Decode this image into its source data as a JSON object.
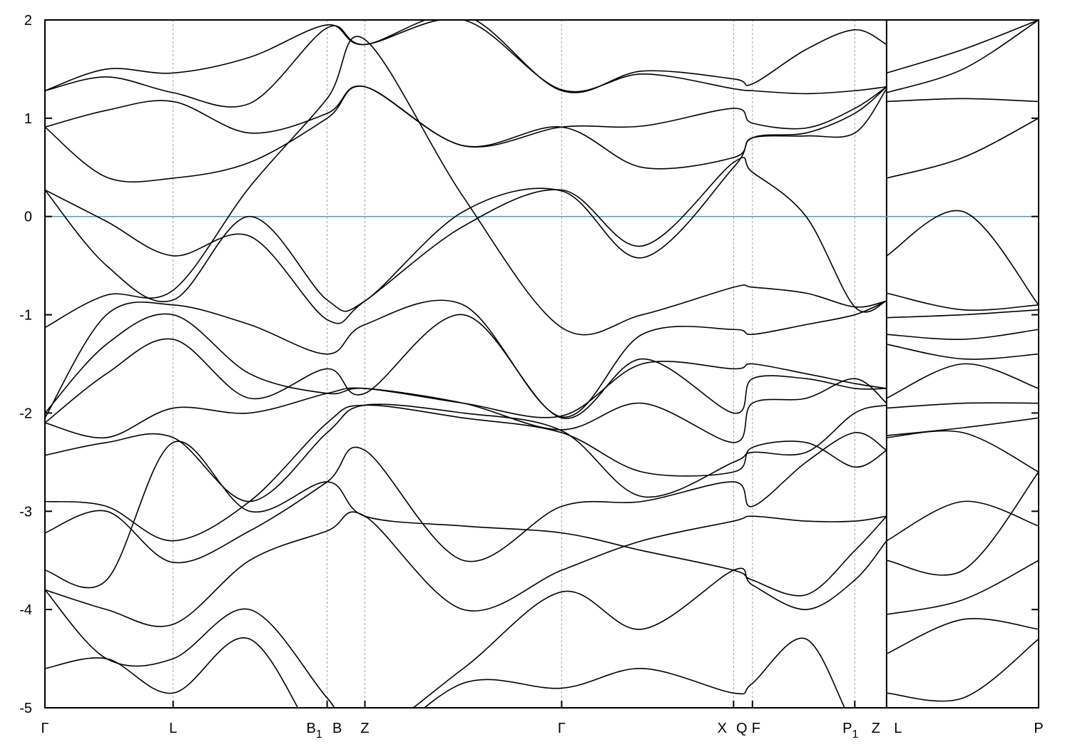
{
  "chart_data": {
    "type": "line",
    "title": "",
    "xlabel": "",
    "ylabel": "",
    "ylim": [
      -5,
      2
    ],
    "yticks": [
      -5,
      -4,
      -3,
      -2,
      -1,
      0,
      1,
      2
    ],
    "ytick_labels": [
      "-5",
      "-4",
      "-3",
      "-2",
      "-1",
      "0",
      "1",
      "2"
    ],
    "grid": "vertical dashed lines at high-symmetry points",
    "fermi_level": 0,
    "colors": {
      "bands": "#000000",
      "fermi_line": "#3fa3dc",
      "gridlines": "#a0a0a0"
    },
    "kpoints": [
      {
        "label": "Γ",
        "sub": "",
        "k": 0.0
      },
      {
        "label": "L",
        "sub": "",
        "k": 0.129
      },
      {
        "label": "B",
        "sub": "1",
        "k": 0.284
      },
      {
        "label": "B",
        "sub": "",
        "k": 0.284
      },
      {
        "label": "Z",
        "sub": "",
        "k": 0.322
      },
      {
        "label": "Γ",
        "sub": "",
        "k": 0.52
      },
      {
        "label": "X",
        "sub": "",
        "k": 0.693
      },
      {
        "label": "Q",
        "sub": "",
        "k": 0.712
      },
      {
        "label": "F",
        "sub": "",
        "k": 0.712
      },
      {
        "label": "P",
        "sub": "1",
        "k": 0.815
      },
      {
        "label": "Z",
        "sub": "",
        "k": 0.847
      },
      {
        "label": "L",
        "sub": "",
        "k": 0.847
      },
      {
        "label": "P",
        "sub": "",
        "k": 1.0
      }
    ],
    "path_break_k": 0.847,
    "segments": [
      {
        "k": [
          0,
          0.062,
          0.129,
          0.206,
          0.284,
          0.322,
          0.421,
          0.52,
          0.601,
          0.693,
          0.712,
          0.766,
          0.815,
          0.847
        ],
        "bands": [
          [
            1.28,
            1.5,
            1.46,
            1.62,
            1.95,
            1.75,
            2.05,
            1.28,
            1.48,
            1.4,
            1.35,
            1.7,
            1.9,
            1.75
          ],
          [
            1.28,
            1.42,
            1.26,
            1.15,
            1.92,
            1.75,
            2.0,
            1.29,
            1.45,
            1.3,
            1.28,
            1.25,
            1.28,
            1.32
          ],
          [
            0.91,
            1.08,
            1.17,
            0.85,
            1.05,
            1.32,
            0.72,
            0.91,
            0.92,
            1.1,
            0.95,
            0.9,
            1.1,
            1.32
          ],
          [
            0.91,
            0.4,
            0.39,
            0.55,
            1.0,
            1.32,
            0.72,
            0.91,
            0.5,
            0.6,
            0.8,
            0.82,
            0.85,
            1.3
          ],
          [
            0.27,
            -0.05,
            -0.4,
            -0.2,
            -1.05,
            -0.86,
            -0.1,
            0.27,
            -0.3,
            0.55,
            0.45,
            0.0,
            -0.92,
            -0.86
          ],
          [
            0.27,
            -0.5,
            -0.85,
            0.0,
            -0.85,
            -0.86,
            0.05,
            0.26,
            -0.42,
            0.5,
            0.8,
            0.85,
            1.05,
            1.32
          ],
          [
            -1.13,
            -0.8,
            -0.75,
            0.3,
            1.2,
            1.8,
            0.2,
            -1.13,
            -1.0,
            -0.72,
            -0.72,
            -0.78,
            -0.92,
            -0.86
          ],
          [
            -2.05,
            -1.0,
            -0.9,
            -1.1,
            -1.4,
            -1.1,
            -0.9,
            -2.04,
            -1.2,
            -1.15,
            -1.2,
            -1.1,
            -1.0,
            -0.86
          ],
          [
            -2.0,
            -1.3,
            -1.0,
            -1.6,
            -1.8,
            -1.75,
            -1.9,
            -2.03,
            -1.5,
            -1.55,
            -1.5,
            -1.6,
            -1.7,
            -1.75
          ],
          [
            -2.1,
            -1.6,
            -1.25,
            -1.85,
            -1.55,
            -1.8,
            -1.0,
            -2.05,
            -1.45,
            -2.0,
            -1.65,
            -1.65,
            -1.75,
            -1.75
          ],
          [
            -2.1,
            -2.25,
            -1.95,
            -2.0,
            -1.8,
            -1.75,
            -1.9,
            -2.17,
            -1.9,
            -2.3,
            -1.9,
            -1.85,
            -1.65,
            -1.9
          ],
          [
            -2.43,
            -2.3,
            -2.25,
            -2.9,
            -2.2,
            -1.92,
            -2.0,
            -2.18,
            -2.85,
            -2.5,
            -2.4,
            -2.4,
            -2.0,
            -1.92
          ],
          [
            -2.9,
            -2.95,
            -3.3,
            -2.9,
            -2.1,
            -1.92,
            -2.05,
            -2.2,
            -2.6,
            -2.6,
            -2.35,
            -2.3,
            -2.55,
            -2.38
          ],
          [
            -3.22,
            -3.0,
            -3.52,
            -3.2,
            -2.7,
            -2.38,
            -3.5,
            -2.95,
            -2.9,
            -2.7,
            -2.95,
            -2.5,
            -2.2,
            -2.38
          ],
          [
            -3.6,
            -3.7,
            -2.3,
            -3.0,
            -2.7,
            -3.05,
            -3.15,
            -3.22,
            -3.4,
            -3.6,
            -3.7,
            -3.85,
            -3.4,
            -3.05
          ],
          [
            -3.8,
            -4.0,
            -4.15,
            -3.5,
            -3.2,
            -3.05,
            -4.0,
            -3.6,
            -3.3,
            -3.1,
            -3.05,
            -3.1,
            -3.1,
            -3.05
          ],
          [
            -3.8,
            -4.5,
            -4.5,
            -4.0,
            -4.9,
            -5.3,
            -4.6,
            -3.82,
            -4.2,
            -3.6,
            -3.75,
            -4.0,
            -3.7,
            -3.3
          ],
          [
            -4.6,
            -4.5,
            -4.85,
            -4.3,
            -5.5,
            -5.5,
            -4.75,
            -4.8,
            -4.6,
            -4.85,
            -4.75,
            -4.3,
            -5.2,
            -5.5
          ]
        ]
      },
      {
        "k": [
          0.847,
          0.924,
          1.0
        ],
        "bands": [
          [
            1.46,
            1.7,
            2.0
          ],
          [
            1.26,
            1.5,
            2.0
          ],
          [
            1.17,
            1.2,
            1.17
          ],
          [
            0.39,
            0.6,
            1.0
          ],
          [
            -0.4,
            0.05,
            -0.9
          ],
          [
            -0.78,
            -0.95,
            -0.9
          ],
          [
            -1.03,
            -1.0,
            -0.95
          ],
          [
            -1.2,
            -1.25,
            -1.15
          ],
          [
            -1.3,
            -1.45,
            -1.4
          ],
          [
            -1.85,
            -1.5,
            -1.75
          ],
          [
            -1.95,
            -1.9,
            -1.9
          ],
          [
            -2.23,
            -2.15,
            -2.05
          ],
          [
            -2.25,
            -2.2,
            -2.6
          ],
          [
            -3.3,
            -2.9,
            -3.15
          ],
          [
            -3.5,
            -3.6,
            -2.6
          ],
          [
            -4.05,
            -3.9,
            -3.5
          ],
          [
            -4.45,
            -4.1,
            -4.2
          ],
          [
            -4.85,
            -4.9,
            -4.3
          ]
        ]
      }
    ]
  }
}
